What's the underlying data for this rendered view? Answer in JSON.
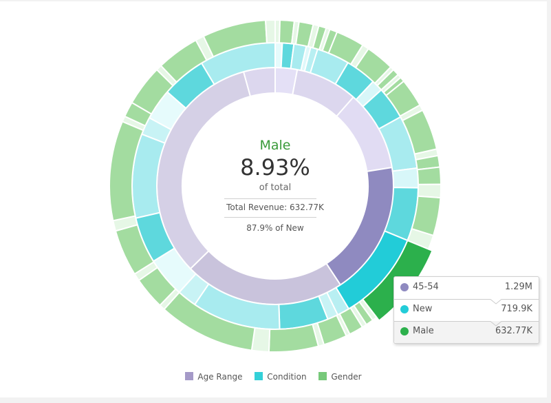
{
  "chart_data": {
    "type": "sunburst",
    "legend": [
      "Age Range",
      "Condition",
      "Gender"
    ],
    "legend_position": "bottom",
    "colors": {
      "age_range": "#a59ac8",
      "condition": "#33d0d8",
      "gender": "#77c97a"
    },
    "highlighted_path": [
      "45-54",
      "New",
      "Male"
    ],
    "center": {
      "name": "Male",
      "percent": "8.93%",
      "of_total": "of total",
      "revenue": "Total Revenue: 632.77K",
      "share": "87.9% of New"
    },
    "tooltip": [
      {
        "label": "45-54",
        "value": "1.29M",
        "color": "#8f8ac0"
      },
      {
        "label": "New",
        "value": "719.9K",
        "color": "#22ccd8"
      },
      {
        "label": "Male",
        "value": "632.77K",
        "color": "#2cb04c"
      }
    ],
    "rings": {
      "age": [
        {
          "value": 3.0,
          "color": "#e4e0f6"
        },
        {
          "value": 8.5,
          "color": "#dcd7ee"
        },
        {
          "value": 11.0,
          "color": "#e1dcf3"
        },
        {
          "value": 18.2,
          "color": "#8f8ac0",
          "highlight": true
        },
        {
          "value": 22.0,
          "color": "#c9c3dc"
        },
        {
          "value": 33.0,
          "color": "#d5d0e6"
        },
        {
          "value": 4.3,
          "color": "#dcd7ee"
        }
      ],
      "condition": [
        {
          "value": 0.8,
          "color": "#e6fbfc"
        },
        {
          "value": 1.3,
          "color": "#5ed8dd"
        },
        {
          "value": 1.4,
          "color": "#a8ebef"
        },
        {
          "value": 0.5,
          "color": "#dff8fa"
        },
        {
          "value": 0.8,
          "color": "#b8eff2"
        },
        {
          "value": 3.7,
          "color": "#a8ebef"
        },
        {
          "value": 3.5,
          "color": "#5ed8dd"
        },
        {
          "value": 1.3,
          "color": "#d8f7f9"
        },
        {
          "value": 3.7,
          "color": "#5ed8dd"
        },
        {
          "value": 6.0,
          "color": "#a8ebef"
        },
        {
          "value": 2.2,
          "color": "#d8f7f9"
        },
        {
          "value": 6.0,
          "color": "#5ed8dd"
        },
        {
          "value": 10.2,
          "color": "#22ccd8",
          "highlight": true
        },
        {
          "value": 1.4,
          "color": "#b8eff2"
        },
        {
          "value": 1.2,
          "color": "#c8f3f5"
        },
        {
          "value": 5.5,
          "color": "#5ed8dd"
        },
        {
          "value": 10.0,
          "color": "#a8ebef"
        },
        {
          "value": 2.2,
          "color": "#c8f3f5"
        },
        {
          "value": 4.5,
          "color": "#e6fbfc"
        },
        {
          "value": 5.2,
          "color": "#5ed8dd"
        },
        {
          "value": 9.5,
          "color": "#a8ebef"
        },
        {
          "value": 2.0,
          "color": "#c8f3f5"
        },
        {
          "value": 3.5,
          "color": "#e6fbfc"
        },
        {
          "value": 5.0,
          "color": "#5ed8dd"
        },
        {
          "value": 8.6,
          "color": "#a8ebef"
        }
      ],
      "gender": [
        {
          "value": 0.5,
          "color": "#e6f7e6"
        },
        {
          "value": 1.5,
          "color": "#a3dca0"
        },
        {
          "value": 0.5,
          "color": "#e6f7e6"
        },
        {
          "value": 1.5,
          "color": "#a3dca0"
        },
        {
          "value": 0.6,
          "color": "#e6f7e6"
        },
        {
          "value": 0.8,
          "color": "#a3dca0"
        },
        {
          "value": 0.4,
          "color": "#e6f7e6"
        },
        {
          "value": 0.8,
          "color": "#a3dca0"
        },
        {
          "value": 3.0,
          "color": "#a3dca0"
        },
        {
          "value": 0.7,
          "color": "#e6f7e6"
        },
        {
          "value": 3.0,
          "color": "#a3dca0"
        },
        {
          "value": 0.4,
          "color": "#e6f7e6"
        },
        {
          "value": 0.7,
          "color": "#a3dca0"
        },
        {
          "value": 0.4,
          "color": "#e6f7e6"
        },
        {
          "value": 0.5,
          "color": "#a3dca0"
        },
        {
          "value": 3.0,
          "color": "#a3dca0"
        },
        {
          "value": 0.6,
          "color": "#e6f7e6"
        },
        {
          "value": 4.3,
          "color": "#a3dca0"
        },
        {
          "value": 0.7,
          "color": "#e6f7e6"
        },
        {
          "value": 1.2,
          "color": "#a3dca0"
        },
        {
          "value": 1.8,
          "color": "#a3dca0"
        },
        {
          "value": 1.4,
          "color": "#e6f7e6"
        },
        {
          "value": 4.0,
          "color": "#a3dca0"
        },
        {
          "value": 1.5,
          "color": "#e6f7e6"
        },
        {
          "value": 9.0,
          "color": "#2cb04c",
          "highlight": true
        },
        {
          "value": 0.5,
          "color": "#e6f7e6"
        },
        {
          "value": 0.8,
          "color": "#a3dca0"
        },
        {
          "value": 0.5,
          "color": "#e6f7e6"
        },
        {
          "value": 1.5,
          "color": "#a3dca0"
        },
        {
          "value": 0.4,
          "color": "#e6f7e6"
        },
        {
          "value": 2.5,
          "color": "#a3dca0"
        },
        {
          "value": 0.6,
          "color": "#e6f7e6"
        },
        {
          "value": 5.2,
          "color": "#a3dca0"
        },
        {
          "value": 1.8,
          "color": "#e6f7e6"
        },
        {
          "value": 10.2,
          "color": "#a3dca0"
        },
        {
          "value": 0.6,
          "color": "#e6f7e6"
        },
        {
          "value": 3.4,
          "color": "#a3dca0"
        },
        {
          "value": 0.8,
          "color": "#e6f7e6"
        },
        {
          "value": 4.9,
          "color": "#a3dca0"
        },
        {
          "value": 1.1,
          "color": "#e6f7e6"
        },
        {
          "value": 10.5,
          "color": "#a3dca0"
        },
        {
          "value": 0.6,
          "color": "#e6f7e6"
        },
        {
          "value": 1.6,
          "color": "#a3dca0"
        },
        {
          "value": 4.3,
          "color": "#a3dca0"
        },
        {
          "value": 0.6,
          "color": "#e6f7e6"
        },
        {
          "value": 4.5,
          "color": "#a3dca0"
        },
        {
          "value": 0.9,
          "color": "#e6f7e6"
        },
        {
          "value": 6.7,
          "color": "#a3dca0"
        },
        {
          "value": 1.0,
          "color": "#e6f7e6"
        }
      ]
    }
  }
}
